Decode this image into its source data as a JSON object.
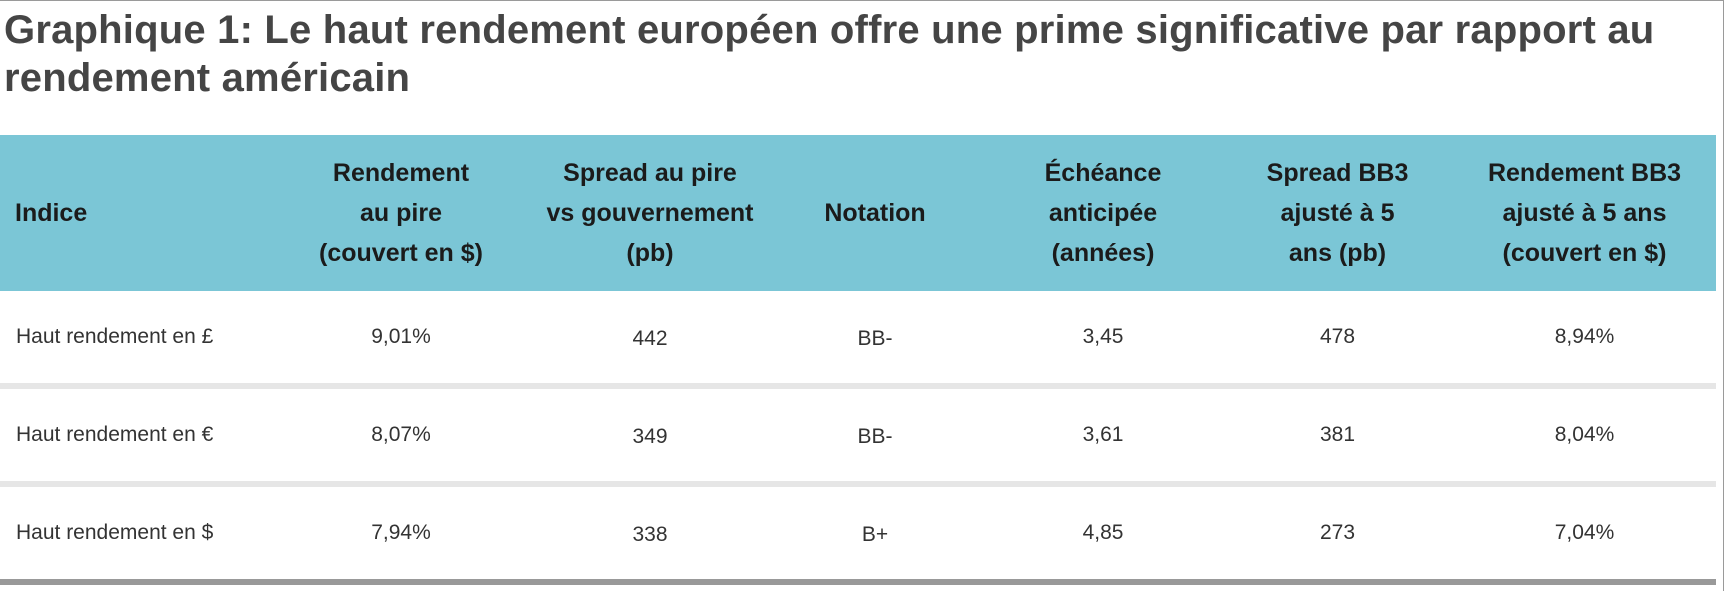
{
  "title": "Graphique 1: Le haut rendement européen offre une prime significative par rapport au rendement américain",
  "table": {
    "headers": [
      "Indice",
      "Rendement\nau pire\n(couvert en $)",
      "Spread au pire\nvs gouvernement\n(pb)",
      "Notation",
      "Échéance\nanticipée\n(années)",
      "Spread BB3\najusté à 5\nans (pb)",
      "Rendement BB3\najusté à 5 ans\n(couvert en $)"
    ],
    "rows": [
      [
        "Haut rendement en £",
        "9,01%",
        "442",
        "BB-",
        "3,45",
        "478",
        "8,94%"
      ],
      [
        "Haut rendement en €",
        "8,07%",
        "349",
        "BB-",
        "3,61",
        "381",
        "8,04%"
      ],
      [
        "Haut rendement en $",
        "7,94%",
        "338",
        "B+",
        "4,85",
        "273",
        "7,04%"
      ]
    ]
  }
}
